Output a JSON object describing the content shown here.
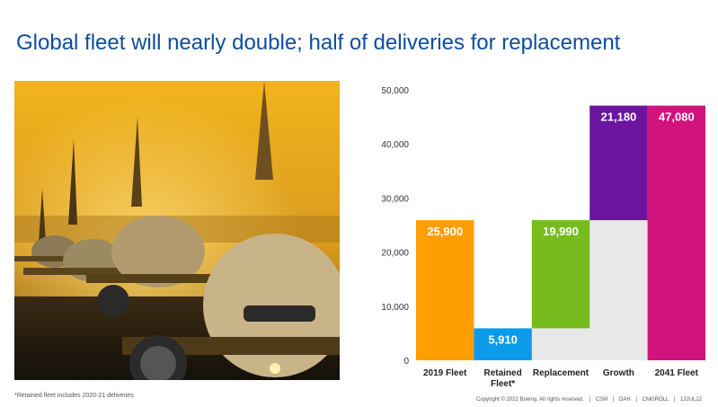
{
  "slide": {
    "title": "Global fleet will nearly double; half of deliveries for replacement",
    "footnote": "*Retained fleet includes 2020-21 deliveries",
    "copyright": {
      "notice": "Copyright © 2022 Boeing. All rights reserved.",
      "codes": [
        "CSM",
        "DAH",
        "CMGROLL",
        "13JUL22"
      ]
    }
  },
  "photo": {
    "description_icon": "airplanes-on-taxiway-photo"
  },
  "chart_data": {
    "type": "bar",
    "subtype": "waterfall",
    "categories": [
      "2019 Fleet",
      "Retained Fleet*",
      "Replacement",
      "Growth",
      "2041 Fleet"
    ],
    "bars": [
      {
        "category": "2019 Fleet",
        "label": "25,900",
        "base": 0,
        "value": 25900,
        "color": "#ff9e00"
      },
      {
        "category": "Retained Fleet*",
        "label": "5,910",
        "base": 0,
        "value": 5910,
        "color": "#0a9bea"
      },
      {
        "category": "Replacement",
        "label": "19,990",
        "base": 5910,
        "value": 19990,
        "color": "#77bc1f"
      },
      {
        "category": "Growth",
        "label": "21,180",
        "base": 25900,
        "value": 21180,
        "color": "#6a14a0"
      },
      {
        "category": "2041 Fleet",
        "label": "47,080",
        "base": 0,
        "value": 47080,
        "color": "#d0137d"
      }
    ],
    "background_bars": [
      {
        "category": "Replacement",
        "base": 0,
        "value": 5910,
        "color": "#e8e8e8"
      },
      {
        "category": "Growth",
        "base": 0,
        "value": 25900,
        "color": "#e8e8e8"
      }
    ],
    "yticks": [
      "0",
      "10,000",
      "20,000",
      "30,000",
      "40,000",
      "50,000"
    ],
    "ytick_values": [
      0,
      10000,
      20000,
      30000,
      40000,
      50000
    ],
    "ylim": [
      0,
      50000
    ],
    "grid": false,
    "legend": "none"
  }
}
